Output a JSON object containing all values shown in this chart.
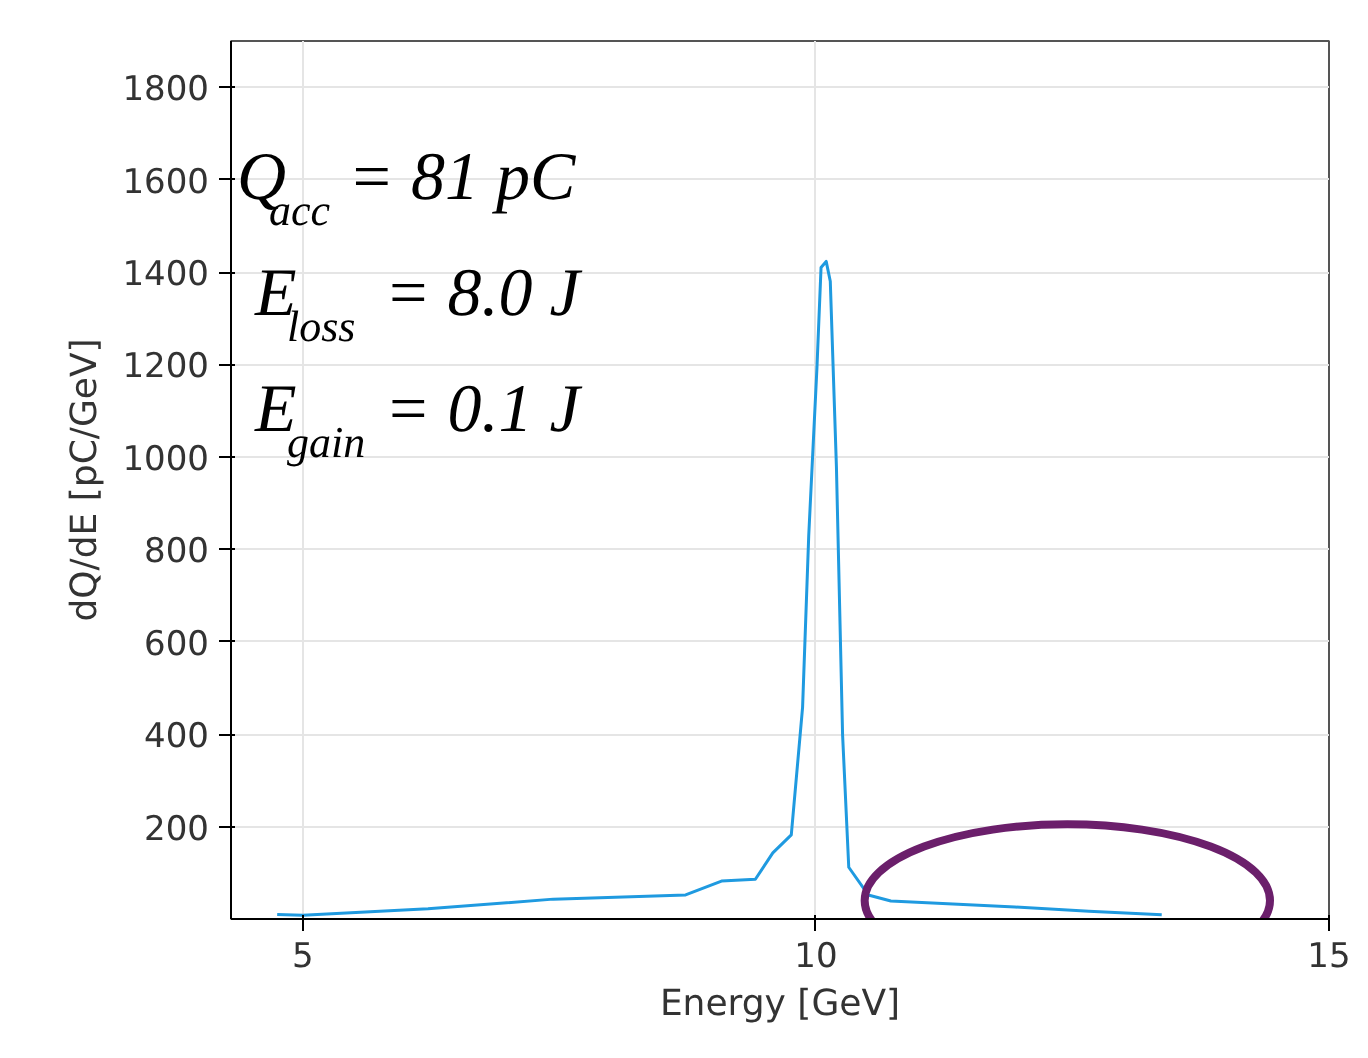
{
  "chart_data": {
    "type": "line",
    "xlabel": "Energy [GeV]",
    "ylabel": "dQ/dE [pC/GeV]",
    "annotations": [
      "Q$_{acc}$ = 81 pC",
      "E$_{loss}$ = 8.0 J",
      "E$_{gain}$ = 0.1 J"
    ],
    "x": [
      4.75,
      5.0,
      6.22,
      7.44,
      8.73,
      9.08,
      9.41,
      9.58,
      9.76,
      9.87,
      9.93,
      10.01,
      10.05,
      10.1,
      10.14,
      10.2,
      10.26,
      10.32,
      10.51,
      10.73,
      11.94,
      12.66,
      13.37
    ],
    "series": [
      {
        "color": "#1f9ae0",
        "values": [
          10,
          8,
          22,
          43,
          52,
          82,
          86,
          143,
          182,
          458,
          830,
          1193,
          1410,
          1423,
          1380,
          977,
          398,
          112,
          52,
          39,
          26,
          17,
          9
        ]
      }
    ],
    "xlim": [
      4.3,
      15
    ],
    "ylim": [
      0,
      1900
    ],
    "xticks": [
      5,
      10,
      15
    ],
    "yticks": [
      200,
      400,
      600,
      800,
      1000,
      1200,
      1400,
      1600,
      1800
    ],
    "grid": true,
    "marker": "none",
    "line_style": "solid"
  }
}
